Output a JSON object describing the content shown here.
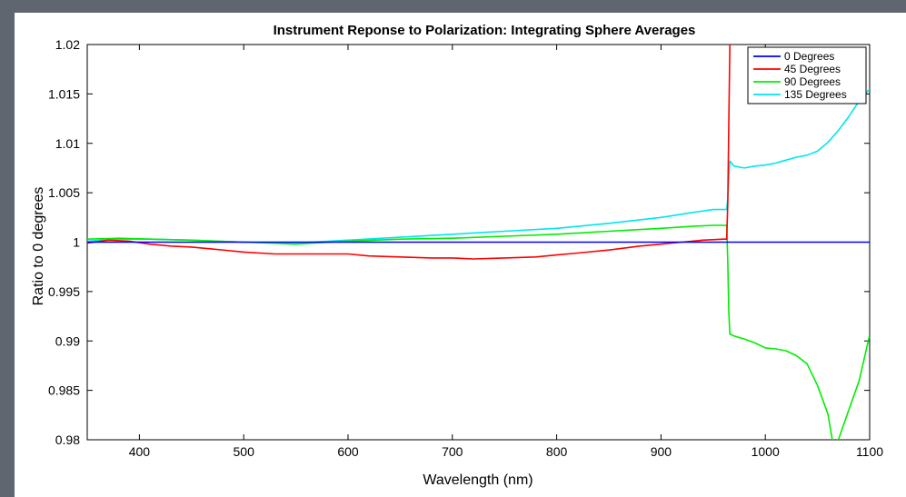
{
  "chart_data": {
    "type": "line",
    "title": "Instrument Reponse to Polarization: Integrating Sphere Averages",
    "xlabel": "Wavelength (nm)",
    "ylabel": "Ratio to 0 degrees",
    "xlim": [
      350,
      1100
    ],
    "ylim": [
      0.98,
      1.02
    ],
    "xticks": [
      400,
      500,
      600,
      700,
      800,
      900,
      1000,
      1100
    ],
    "yticks": [
      0.98,
      0.985,
      0.99,
      0.995,
      1,
      1.005,
      1.01,
      1.015,
      1.02
    ],
    "ytick_labels": [
      "0.98",
      "0.985",
      "0.99",
      "0.995",
      "1",
      "1.005",
      "1.01",
      "1.015",
      "1.02"
    ],
    "grid": false,
    "legend_position": "top-right",
    "series": [
      {
        "name": "0 Degrees",
        "color": "#0000ff",
        "x": [
          350,
          1100
        ],
        "y": [
          1.0,
          1.0
        ]
      },
      {
        "name": "45 Degrees",
        "color": "#ff0000",
        "x": [
          350,
          370,
          390,
          410,
          430,
          450,
          470,
          500,
          530,
          560,
          590,
          600,
          620,
          650,
          680,
          700,
          720,
          750,
          780,
          800,
          820,
          850,
          880,
          900,
          920,
          940,
          960,
          963,
          964,
          965,
          966,
          967
        ],
        "y": [
          0.9999,
          1.0002,
          1.0001,
          0.9998,
          0.9996,
          0.9995,
          0.9993,
          0.999,
          0.9988,
          0.9988,
          0.9988,
          0.9988,
          0.9986,
          0.9985,
          0.9984,
          0.9984,
          0.9983,
          0.9984,
          0.9985,
          0.9987,
          0.9989,
          0.9992,
          0.9996,
          0.9998,
          1.0,
          1.0002,
          1.0003,
          1.0003,
          1.004,
          1.012,
          1.02,
          1.02
        ]
      },
      {
        "name": "90 Degrees",
        "color": "#00ee00",
        "x": [
          350,
          380,
          410,
          450,
          500,
          550,
          600,
          650,
          700,
          750,
          800,
          850,
          900,
          930,
          950,
          963,
          964,
          965,
          966,
          970,
          980,
          990,
          1000,
          1010,
          1020,
          1030,
          1040,
          1050,
          1060,
          1065,
          1070,
          1080,
          1090,
          1100
        ],
        "y": [
          1.0003,
          1.0004,
          1.0003,
          1.0002,
          1.0,
          0.9998,
          1.0001,
          1.0003,
          1.0004,
          1.0006,
          1.0008,
          1.0011,
          1.0014,
          1.0016,
          1.0017,
          1.0017,
          0.998,
          0.993,
          0.9907,
          0.9905,
          0.9902,
          0.9898,
          0.9893,
          0.9892,
          0.989,
          0.9885,
          0.9877,
          0.9855,
          0.9826,
          0.9795,
          0.98,
          0.983,
          0.986,
          0.9906
        ]
      },
      {
        "name": "135 Degrees",
        "color": "#00e5ee",
        "x": [
          350,
          380,
          410,
          450,
          500,
          550,
          600,
          650,
          700,
          750,
          800,
          850,
          900,
          930,
          950,
          963,
          964,
          965,
          966,
          970,
          980,
          990,
          1000,
          1010,
          1020,
          1030,
          1040,
          1050,
          1060,
          1070,
          1080,
          1090,
          1100
        ],
        "y": [
          1.0001,
          1.0003,
          1.0003,
          1.0002,
          1.0,
          0.9999,
          1.0002,
          1.0005,
          1.0008,
          1.0011,
          1.0014,
          1.0019,
          1.0025,
          1.003,
          1.0033,
          1.0033,
          1.0045,
          1.0065,
          1.0082,
          1.0077,
          1.0075,
          1.0077,
          1.0078,
          1.008,
          1.0083,
          1.0086,
          1.0088,
          1.0092,
          1.0101,
          1.0113,
          1.0127,
          1.0143,
          1.0155
        ]
      }
    ]
  }
}
